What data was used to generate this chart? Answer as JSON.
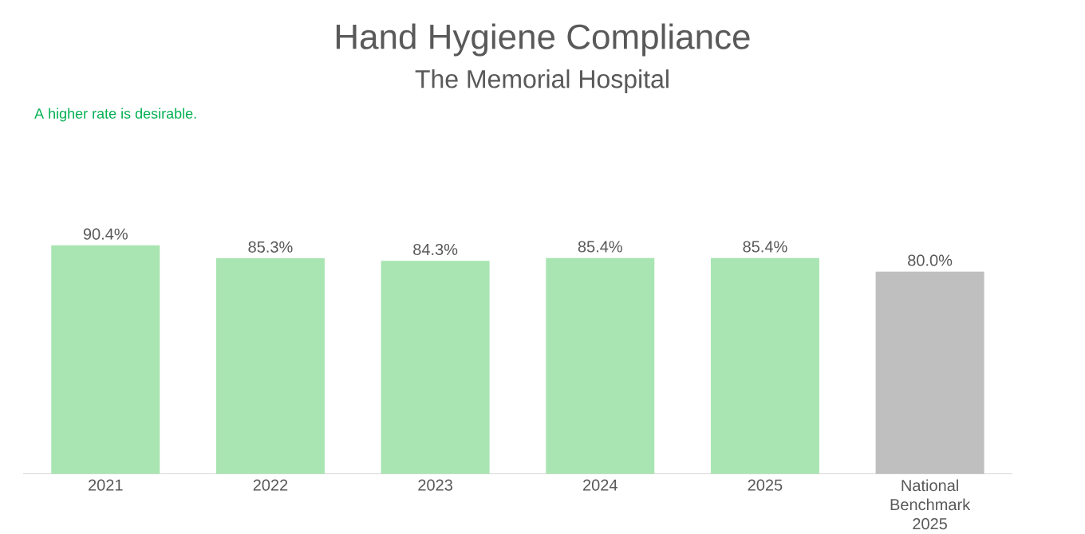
{
  "chart_data": {
    "type": "bar",
    "title": "Hand Hygiene Compliance",
    "subtitle": "The Memorial Hospital",
    "annotations": [
      "A higher rate is desirable."
    ],
    "categories": [
      "2021",
      "2022",
      "2023",
      "2024",
      "2025",
      "National Benchmark 2025"
    ],
    "values": [
      90.4,
      85.3,
      84.3,
      85.4,
      85.4,
      80.0
    ],
    "value_labels": [
      "90.4%",
      "85.3%",
      "84.3%",
      "85.4%",
      "85.4%",
      "80.0%"
    ],
    "colors": [
      "#a9e5b2",
      "#a9e5b2",
      "#a9e5b2",
      "#a9e5b2",
      "#a9e5b2",
      "#bfbfbf"
    ]
  }
}
